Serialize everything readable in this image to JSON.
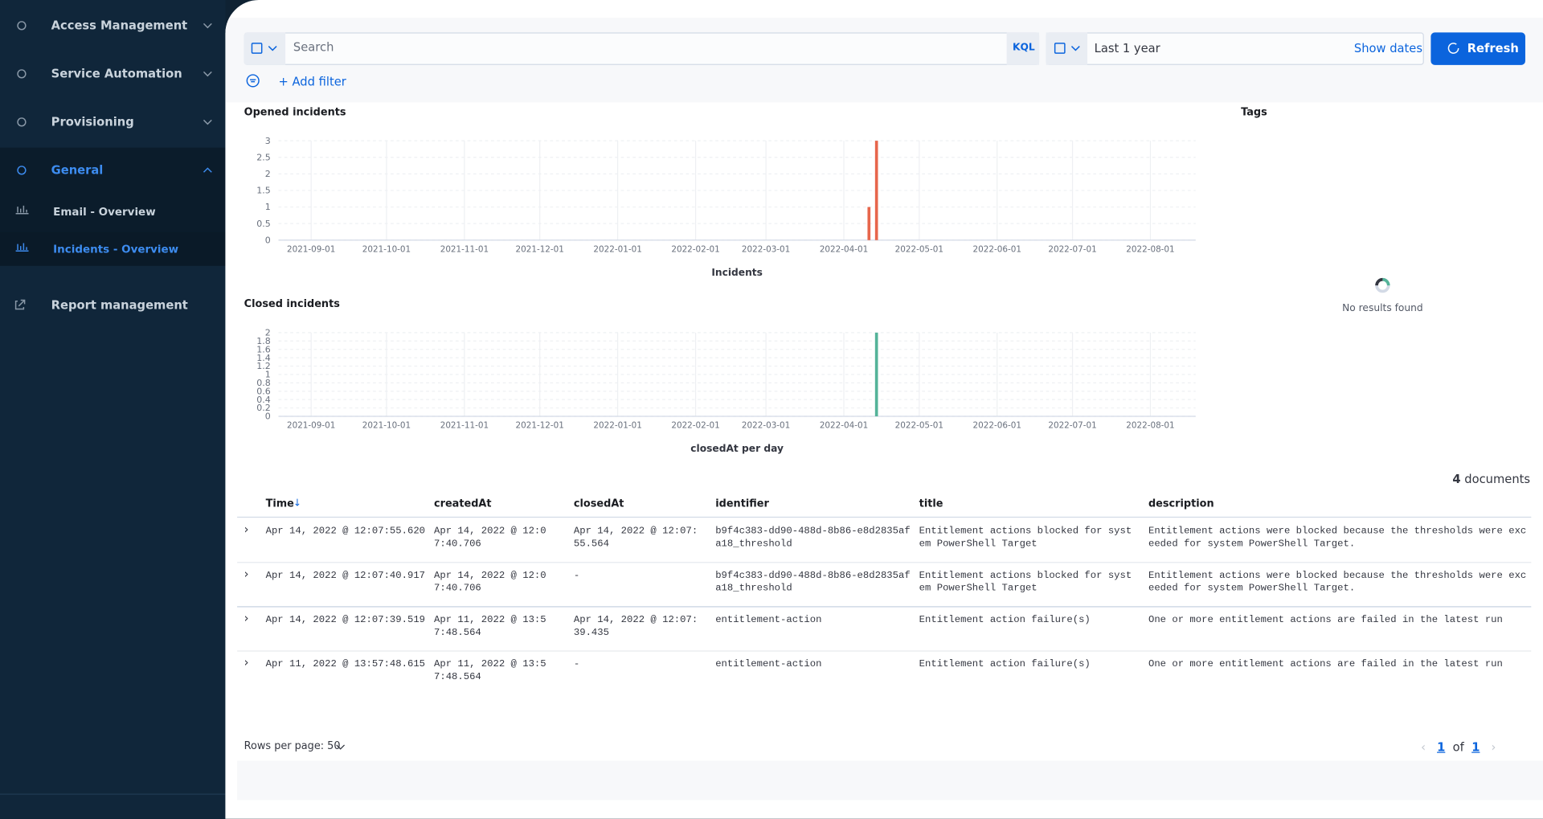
{
  "sidebar": {
    "items": [
      "Access Management",
      "Service Automation",
      "Provisioning",
      "General"
    ],
    "sub_items": [
      "Email - Overview",
      "Incidents - Overview"
    ],
    "report": "Report management"
  },
  "query_bar": {
    "search_placeholder": "Search",
    "language": "KQL",
    "time_range": "Last 1 year",
    "show_dates": "Show dates",
    "refresh": "Refresh",
    "add_filter": "+ Add filter"
  },
  "chart_data": [
    {
      "type": "bar",
      "title": "Opened incidents",
      "x_label": "Incidents",
      "x": [
        "2022-04-11",
        "2022-04-14"
      ],
      "values": [
        1,
        3
      ],
      "color": "#e7664c",
      "xlim": [
        "2021-08-19",
        "2022-08-19"
      ],
      "xticks": [
        "2021-09-01",
        "2021-10-01",
        "2021-11-01",
        "2021-12-01",
        "2022-01-01",
        "2022-02-01",
        "2022-03-01",
        "2022-04-01",
        "2022-05-01",
        "2022-06-01",
        "2022-07-01",
        "2022-08-01"
      ],
      "ylim": [
        0,
        3
      ],
      "yticks": [
        0,
        0.5,
        1,
        1.5,
        2,
        2.5,
        3
      ],
      "grid": true
    },
    {
      "type": "bar",
      "title": "Closed incidents",
      "x_label": "closedAt per day",
      "x": [
        "2022-04-14"
      ],
      "values": [
        2
      ],
      "color": "#54b399",
      "xlim": [
        "2021-08-19",
        "2022-08-19"
      ],
      "xticks": [
        "2021-09-01",
        "2021-10-01",
        "2021-11-01",
        "2021-12-01",
        "2022-01-01",
        "2022-02-01",
        "2022-03-01",
        "2022-04-01",
        "2022-05-01",
        "2022-06-01",
        "2022-07-01",
        "2022-08-01"
      ],
      "ylim": [
        0,
        2
      ],
      "yticks": [
        0,
        0.2,
        0.4,
        0.6,
        0.8,
        1,
        1.2,
        1.4,
        1.6,
        1.8,
        2
      ],
      "grid": true
    }
  ],
  "tags": {
    "title": "Tags",
    "empty": "No results found"
  },
  "results": {
    "count": 4,
    "count_label": "documents"
  },
  "table": {
    "columns": [
      "Time",
      "createdAt",
      "closedAt",
      "identifier",
      "title",
      "description"
    ],
    "rows": [
      [
        "Apr 14, 2022 @ 12:07:55.620",
        "Apr 14, 2022 @ 12:07:40.706",
        "Apr 14, 2022 @ 12:07:55.564",
        "b9f4c383-dd90-488d-8b86-e8d2835afa18_threshold",
        "Entitlement actions blocked for system PowerShell Target",
        "Entitlement actions were blocked because the thresholds were exceeded for system PowerShell Target."
      ],
      [
        "Apr 14, 2022 @ 12:07:40.917",
        "Apr 14, 2022 @ 12:07:40.706",
        "-",
        "b9f4c383-dd90-488d-8b86-e8d2835afa18_threshold",
        "Entitlement actions blocked for system PowerShell Target",
        "Entitlement actions were blocked because the thresholds were exceeded for system PowerShell Target."
      ],
      [
        "Apr 14, 2022 @ 12:07:39.519",
        "Apr 11, 2022 @ 13:57:48.564",
        "Apr 14, 2022 @ 12:07:39.435",
        "entitlement-action",
        "Entitlement action failure(s)",
        "One or more entitlement actions are failed in the latest run"
      ],
      [
        "Apr 11, 2022 @ 13:57:48.615",
        "Apr 11, 2022 @ 13:57:48.564",
        "-",
        "entitlement-action",
        "Entitlement action failure(s)",
        "One or more entitlement actions are failed in the latest run"
      ]
    ]
  },
  "pagination": {
    "rows_per_page": "Rows per page: 50",
    "current": 1,
    "of": "of",
    "total": 1
  }
}
